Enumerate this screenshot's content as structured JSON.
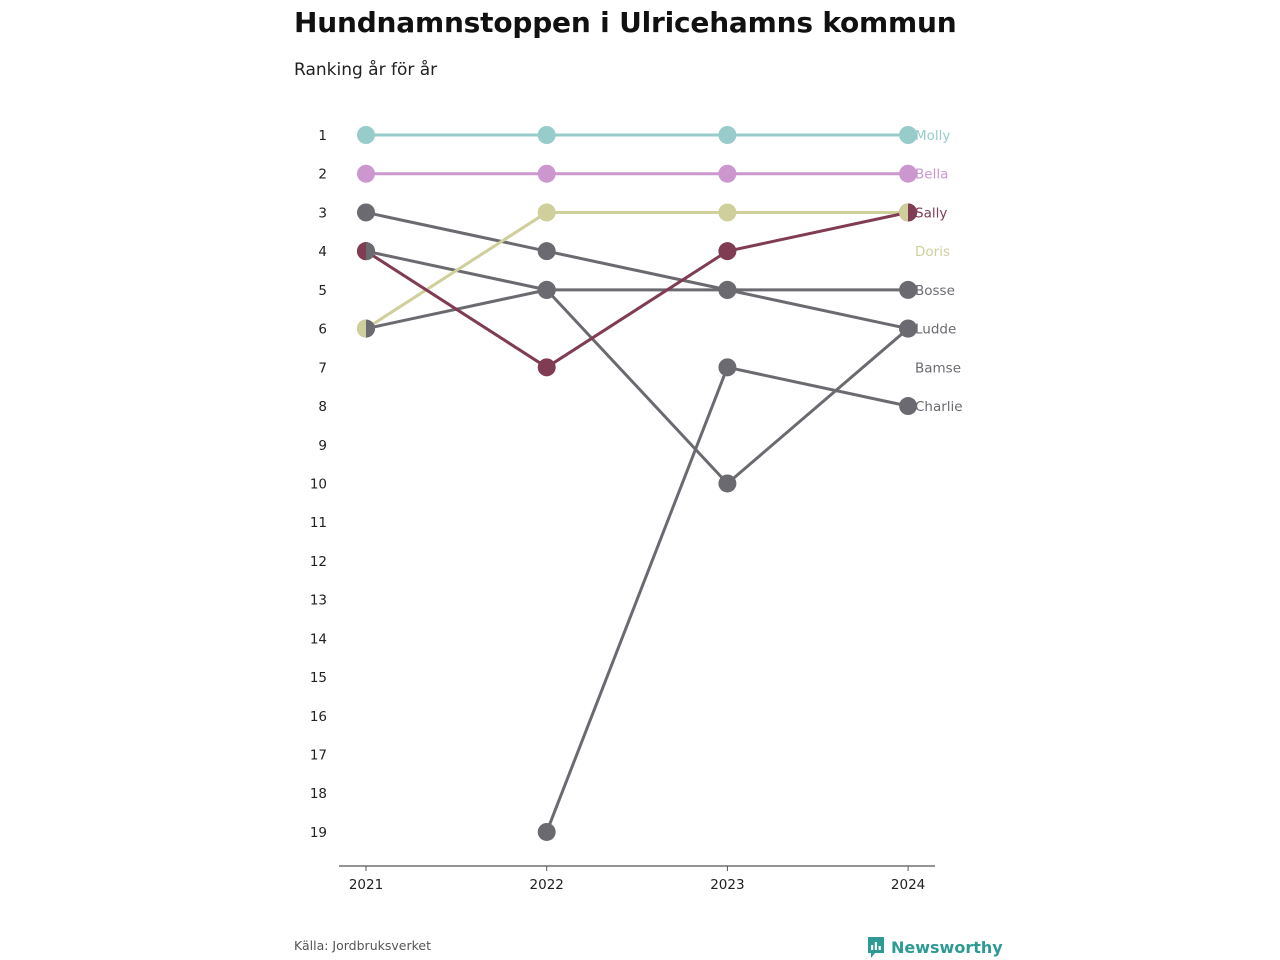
{
  "header": {
    "title": "Hundnamnstoppen i Ulricehamns kommun",
    "subtitle": "Ranking år för år"
  },
  "footer": {
    "source": "Källa: Jordbruksverket",
    "brand": "Newsworthy",
    "brand_icon": "bar-chart-pin-icon"
  },
  "colors": {
    "Molly": "#97cccb",
    "Bella": "#cb97ce",
    "Doris": "#cfcf9b",
    "Sally": "#7f3c53",
    "other": "#6b6a70",
    "axis": "#555555",
    "brand": "#2d9a94"
  },
  "chart_data": {
    "type": "line",
    "subtype": "bump",
    "title": "Hundnamnstoppen i Ulricehamns kommun",
    "subtitle": "Ranking år för år",
    "x": [
      "2021",
      "2022",
      "2023",
      "2024"
    ],
    "y_ticks": [
      1,
      2,
      3,
      4,
      5,
      6,
      7,
      8,
      9,
      10,
      11,
      12,
      13,
      14,
      15,
      16,
      17,
      18,
      19
    ],
    "ylim": [
      1,
      19
    ],
    "y_reversed": true,
    "grid": false,
    "legend": "labels at line ends (right)",
    "series": [
      {
        "name": "Bosse",
        "values": [
          3,
          4,
          5,
          5
        ],
        "color": "#6b6a70"
      },
      {
        "name": "Bamse",
        "values": [
          4,
          5,
          5,
          6
        ],
        "color": "#6b6a70"
      },
      {
        "name": "Ludde",
        "values": [
          6,
          5,
          10,
          6
        ],
        "color": "#6b6a70"
      },
      {
        "name": "Charlie",
        "values": [
          null,
          19,
          7,
          8
        ],
        "color": "#6b6a70"
      },
      {
        "name": "Doris",
        "values": [
          6,
          3,
          3,
          3
        ],
        "color": "#cfcf9b"
      },
      {
        "name": "Sally",
        "values": [
          4,
          7,
          4,
          3
        ],
        "color": "#7f3c53"
      },
      {
        "name": "Bella",
        "values": [
          2,
          2,
          2,
          2
        ],
        "color": "#cb97ce"
      },
      {
        "name": "Molly",
        "values": [
          1,
          1,
          1,
          1
        ],
        "color": "#97cccb"
      }
    ]
  }
}
